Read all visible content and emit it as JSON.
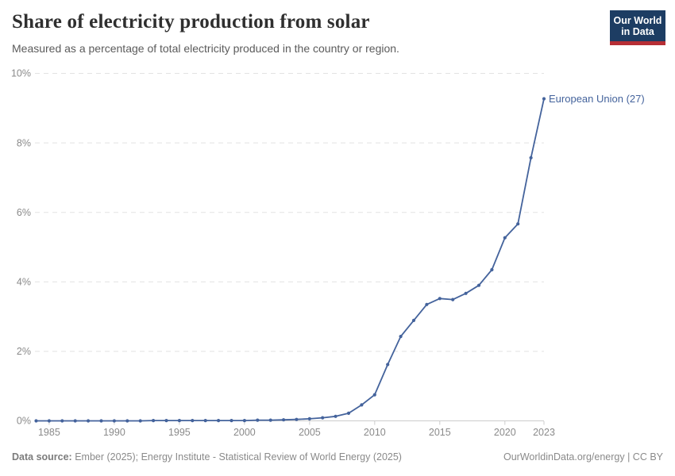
{
  "header": {
    "title": "Share of electricity production from solar",
    "subtitle": "Measured as a percentage of total electricity produced in the country or region.",
    "logo_line1": "Our World",
    "logo_line2": "in Data"
  },
  "chart_data": {
    "type": "line",
    "title": "Share of electricity production from solar",
    "xlabel": "",
    "ylabel": "",
    "xlim": [
      1984,
      2023
    ],
    "ylim": [
      0,
      10
    ],
    "grid": "horizontal-dashed",
    "legend_position": "end-of-line-label",
    "x_tick_years": [
      1985,
      1990,
      1995,
      2000,
      2005,
      2010,
      2015,
      2020,
      2023
    ],
    "y_tick_values": [
      0,
      2,
      4,
      6,
      8,
      10
    ],
    "y_tick_suffix": "%",
    "series": [
      {
        "name": "European Union (27)",
        "color": "#44639c",
        "x": [
          1984,
          1985,
          1986,
          1987,
          1988,
          1989,
          1990,
          1991,
          1992,
          1993,
          1994,
          1995,
          1996,
          1997,
          1998,
          1999,
          2000,
          2001,
          2002,
          2003,
          2004,
          2005,
          2006,
          2007,
          2008,
          2009,
          2010,
          2011,
          2012,
          2013,
          2014,
          2015,
          2016,
          2017,
          2018,
          2019,
          2020,
          2021,
          2022,
          2023
        ],
        "values": [
          0.0,
          0.0,
          0.0,
          0.0,
          0.0,
          0.0,
          0.0,
          0.0,
          0.0,
          0.01,
          0.01,
          0.01,
          0.01,
          0.01,
          0.01,
          0.01,
          0.01,
          0.02,
          0.02,
          0.03,
          0.04,
          0.06,
          0.09,
          0.13,
          0.22,
          0.46,
          0.75,
          1.62,
          2.43,
          2.89,
          3.35,
          3.52,
          3.49,
          3.67,
          3.9,
          4.35,
          5.27,
          5.67,
          7.57,
          9.27
        ]
      }
    ]
  },
  "footer": {
    "datasource_label": "Data source:",
    "datasource_text": " Ember (2025); Energy Institute - Statistical Review of World Energy (2025)",
    "link_text": "OurWorldinData.org/energy | CC BY"
  },
  "colors": {
    "accent_line": "#44639c",
    "logo_navy": "#1d3d63",
    "logo_red": "#b62e35",
    "gridline": "#e2e2e2",
    "axis_line": "#cccccc",
    "tick_label": "#8a8a8a",
    "title_text": "#2f2f2f",
    "subtitle_text": "#5b5b5b"
  }
}
